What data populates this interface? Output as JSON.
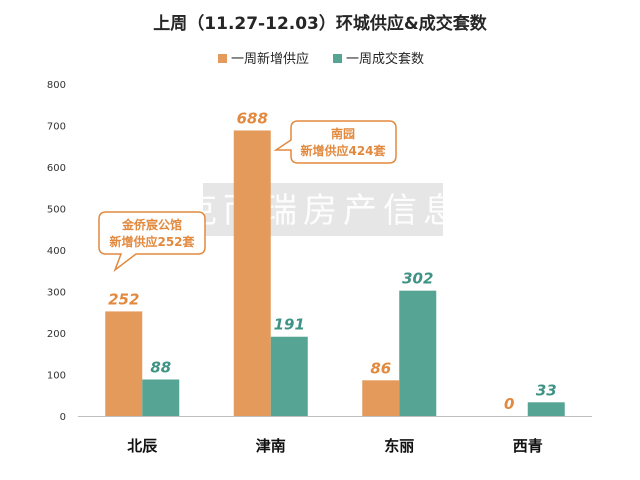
{
  "chart_data": {
    "type": "bar",
    "title": "上周（11.27-12.03）环城供应&成交套数",
    "categories": [
      "北辰",
      "津南",
      "东丽",
      "西青"
    ],
    "series": [
      {
        "name": "一周新增供应",
        "values": [
          252,
          688,
          86,
          0
        ],
        "color": "#e49a5b",
        "label_color": "#e2893e"
      },
      {
        "name": "一周成交套数",
        "values": [
          88,
          191,
          302,
          33
        ],
        "color": "#56a494",
        "label_color": "#3f9384"
      }
    ],
    "ylim": [
      0,
      800
    ],
    "yticks": [
      0,
      100,
      200,
      300,
      400,
      500,
      600,
      700,
      800
    ],
    "legend_position": "top-center",
    "grid": false,
    "annotations": [
      {
        "target": "津南",
        "lines": [
          "南园",
          "新增供应424套"
        ]
      },
      {
        "target": "北辰",
        "lines": [
          "金侨宸公馆",
          "新增供应252套"
        ]
      }
    ],
    "watermark": "克而瑞房产信息"
  }
}
